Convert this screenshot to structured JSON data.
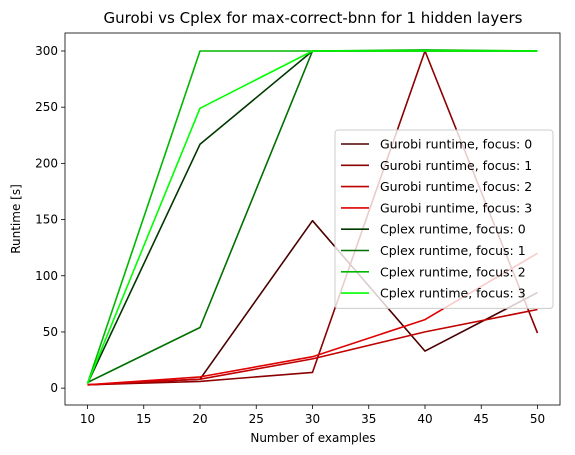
{
  "chart_data": {
    "type": "line",
    "title": "Gurobi vs Cplex for max-correct-bnn for 1 hidden layers",
    "xlabel": "Number of examples",
    "ylabel": "Runtime [s]",
    "xlim": [
      8,
      52
    ],
    "ylim": [
      -15,
      316
    ],
    "xticks": [
      10,
      15,
      20,
      25,
      30,
      35,
      40,
      45,
      50
    ],
    "yticks": [
      0,
      50,
      100,
      150,
      200,
      250,
      300
    ],
    "legend_position": "center-right",
    "x": [
      10,
      20,
      30,
      40,
      50
    ],
    "series": [
      {
        "name": "Gurobi runtime, focus: 0",
        "color": "#4b0000",
        "values": [
          3,
          8,
          149,
          33,
          85
        ]
      },
      {
        "name": "Gurobi runtime, focus: 1",
        "color": "#8b0000",
        "values": [
          3,
          6,
          14,
          300,
          49
        ]
      },
      {
        "name": "Gurobi runtime, focus: 2",
        "color": "#c00000",
        "values": [
          3,
          8,
          26,
          50,
          70
        ]
      },
      {
        "name": "Gurobi runtime, focus: 3",
        "color": "#e00000",
        "values": [
          3,
          10,
          28,
          61,
          120
        ]
      },
      {
        "name": "Cplex runtime, focus: 0",
        "color": "#003800",
        "values": [
          4,
          217,
          300,
          300,
          300
        ]
      },
      {
        "name": "Cplex runtime, focus: 1",
        "color": "#007000",
        "values": [
          5,
          54,
          300,
          300,
          300
        ]
      },
      {
        "name": "Cplex runtime, focus: 2",
        "color": "#00b800",
        "values": [
          4,
          300,
          300,
          301,
          300
        ]
      },
      {
        "name": "Cplex runtime, focus: 3",
        "color": "#00ff00",
        "values": [
          4,
          249,
          300,
          300,
          300
        ]
      }
    ]
  }
}
